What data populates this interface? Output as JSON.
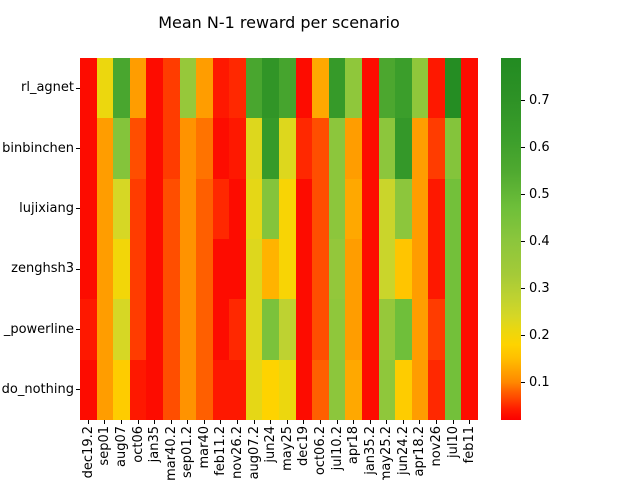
{
  "figure": {
    "background": "#ffffff"
  },
  "chart_data": {
    "type": "heatmap",
    "title": "Mean N-1 reward per scenario",
    "rows": [
      "rl_agnet",
      "binbinchen",
      "lujixiang",
      "zenghsh3",
      "_powerline",
      "do_nothing"
    ],
    "columns": [
      "dec19.2",
      "sep01",
      "aug07",
      "oct06",
      "jan35",
      "mar40.2",
      "sep01.2",
      "mar40",
      "feb11.2",
      "nov26.2",
      "aug07.2",
      "jun24",
      "may25",
      "dec19",
      "oct06.2",
      "jul10.2",
      "apr18",
      "jan35.2",
      "may25.2",
      "jun24.2",
      "apr18.2",
      "nov26",
      "jul10",
      "feb11"
    ],
    "values": [
      [
        0.03,
        0.21,
        0.57,
        0.12,
        0.03,
        0.06,
        0.37,
        0.12,
        0.04,
        0.05,
        0.57,
        0.68,
        0.58,
        0.03,
        0.13,
        0.65,
        0.39,
        0.03,
        0.56,
        0.62,
        0.39,
        0.04,
        0.77,
        0.03
      ],
      [
        0.03,
        0.12,
        0.42,
        0.07,
        0.03,
        0.06,
        0.11,
        0.09,
        0.03,
        0.04,
        0.23,
        0.65,
        0.23,
        0.05,
        0.07,
        0.4,
        0.12,
        0.03,
        0.4,
        0.66,
        0.12,
        0.06,
        0.42,
        0.03
      ],
      [
        0.03,
        0.12,
        0.24,
        0.06,
        0.03,
        0.07,
        0.11,
        0.08,
        0.05,
        0.03,
        0.22,
        0.42,
        0.19,
        0.03,
        0.07,
        0.4,
        0.13,
        0.03,
        0.26,
        0.4,
        0.12,
        0.04,
        0.46,
        0.03
      ],
      [
        0.03,
        0.12,
        0.2,
        0.06,
        0.03,
        0.07,
        0.11,
        0.08,
        0.03,
        0.03,
        0.23,
        0.14,
        0.19,
        0.03,
        0.07,
        0.38,
        0.12,
        0.03,
        0.26,
        0.16,
        0.12,
        0.04,
        0.46,
        0.03
      ],
      [
        0.04,
        0.12,
        0.24,
        0.06,
        0.03,
        0.07,
        0.11,
        0.08,
        0.03,
        0.05,
        0.23,
        0.44,
        0.28,
        0.03,
        0.07,
        0.39,
        0.12,
        0.03,
        0.37,
        0.47,
        0.12,
        0.06,
        0.46,
        0.03
      ],
      [
        0.03,
        0.12,
        0.17,
        0.04,
        0.03,
        0.07,
        0.11,
        0.08,
        0.04,
        0.04,
        0.22,
        0.18,
        0.21,
        0.03,
        0.08,
        0.4,
        0.13,
        0.03,
        0.39,
        0.17,
        0.12,
        0.05,
        0.46,
        0.03
      ]
    ],
    "vmin": 0.02,
    "vmax": 0.79,
    "colormap": {
      "name": "red-yellow-green",
      "stops": [
        [
          0.02,
          "#fb0000"
        ],
        [
          0.045,
          "#ff1e00"
        ],
        [
          0.06,
          "#ff3c00"
        ],
        [
          0.08,
          "#ff5f00"
        ],
        [
          0.1,
          "#ff8800"
        ],
        [
          0.12,
          "#ff9d00"
        ],
        [
          0.15,
          "#ffbe00"
        ],
        [
          0.18,
          "#fed300"
        ],
        [
          0.21,
          "#ecd70e"
        ],
        [
          0.24,
          "#d6d725"
        ],
        [
          0.28,
          "#bed231"
        ],
        [
          0.33,
          "#a4ca38"
        ],
        [
          0.4,
          "#8cc63c"
        ],
        [
          0.47,
          "#6fbf3a"
        ],
        [
          0.55,
          "#4fa930"
        ],
        [
          0.62,
          "#3b9e2b"
        ],
        [
          0.7,
          "#2e9226"
        ],
        [
          0.79,
          "#228b22"
        ]
      ]
    },
    "colorbar": {
      "position": "right",
      "ticks": [
        0.7,
        0.6,
        0.5,
        0.4,
        0.3,
        0.2,
        0.1
      ],
      "tick_labels": [
        "0.7",
        "0.6",
        "0.5",
        "0.4",
        "0.3",
        "0.2",
        "0.1"
      ]
    },
    "layout": {
      "grid": false,
      "x_tick_rotation": 90
    }
  }
}
